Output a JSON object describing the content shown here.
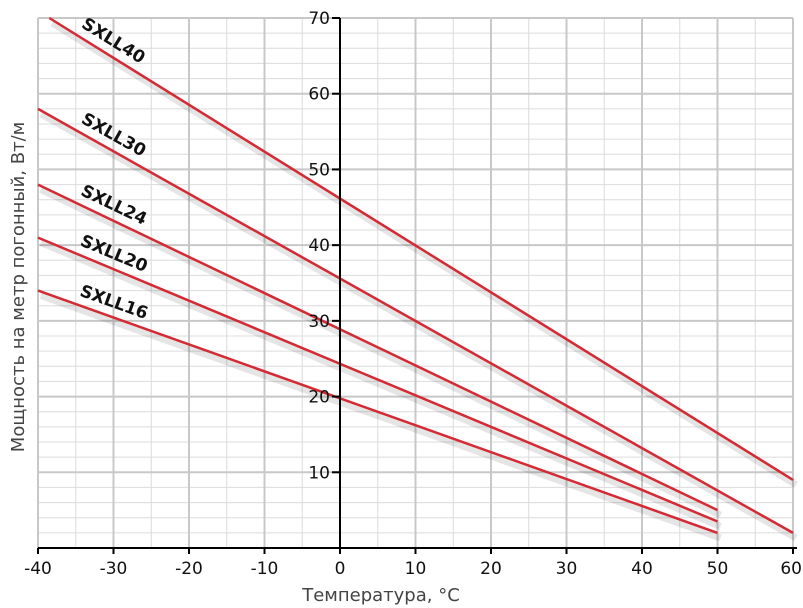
{
  "chart_data": {
    "type": "line",
    "xlabel": "Температура, °С",
    "ylabel": "Мощность на метр погонный, Вт/м",
    "xlim": [
      -40,
      60
    ],
    "ylim": [
      0,
      70
    ],
    "x_ticks": [
      -40,
      -30,
      -20,
      -10,
      0,
      10,
      20,
      30,
      40,
      50,
      60
    ],
    "x_tick_labels": [
      "-40",
      "-30",
      "-20",
      "-10",
      "0",
      "10",
      "20",
      "30",
      "40",
      "50",
      "60"
    ],
    "y_ticks": [
      10,
      20,
      30,
      40,
      50,
      60,
      70
    ],
    "y_tick_labels": [
      "10",
      "20",
      "30",
      "40",
      "50",
      "60",
      "70"
    ],
    "grid": true,
    "colors": {
      "line": "#d42a34",
      "grid": "#c8c8c8",
      "axis": "#000000"
    },
    "series": [
      {
        "name": "SXLL40",
        "x": [
          -38.5,
          60
        ],
        "y": [
          70,
          9
        ]
      },
      {
        "name": "SXLL30",
        "x": [
          -40,
          60
        ],
        "y": [
          58,
          2
        ]
      },
      {
        "name": "SXLL24",
        "x": [
          -40,
          50
        ],
        "y": [
          48,
          5
        ]
      },
      {
        "name": "SXLL20",
        "x": [
          -40,
          50
        ],
        "y": [
          41,
          3.5
        ]
      },
      {
        "name": "SXLL16",
        "x": [
          -40,
          50
        ],
        "y": [
          34,
          2
        ]
      }
    ]
  }
}
